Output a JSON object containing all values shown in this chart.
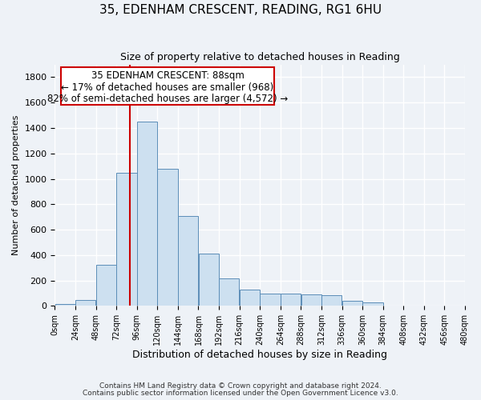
{
  "title": "35, EDENHAM CRESCENT, READING, RG1 6HU",
  "subtitle": "Size of property relative to detached houses in Reading",
  "xlabel": "Distribution of detached houses by size in Reading",
  "ylabel": "Number of detached properties",
  "footnote1": "Contains HM Land Registry data © Crown copyright and database right 2024.",
  "footnote2": "Contains public sector information licensed under the Open Government Licence v3.0.",
  "bin_edges": [
    0,
    24,
    48,
    72,
    96,
    120,
    144,
    168,
    192,
    216,
    240,
    264,
    288,
    312,
    336,
    360,
    384,
    408,
    432,
    456,
    480
  ],
  "bar_heights": [
    18,
    50,
    325,
    1050,
    1450,
    1080,
    710,
    415,
    215,
    130,
    100,
    95,
    90,
    85,
    38,
    28,
    0,
    0,
    0,
    0
  ],
  "bar_color": "#cde0f0",
  "bar_edge_color": "#5b8db8",
  "property_size": 88,
  "annotation_text1": "35 EDENHAM CRESCENT: 88sqm",
  "annotation_text2": "← 17% of detached houses are smaller (968)",
  "annotation_text3": "82% of semi-detached houses are larger (4,572) →",
  "vline_color": "#cc0000",
  "annotation_box_color": "#cc0000",
  "ylim": [
    0,
    1900
  ],
  "yticks": [
    0,
    200,
    400,
    600,
    800,
    1000,
    1200,
    1400,
    1600,
    1800
  ],
  "bg_color": "#eef2f7",
  "plot_bg_color": "#eef2f7",
  "grid_color": "#ffffff"
}
